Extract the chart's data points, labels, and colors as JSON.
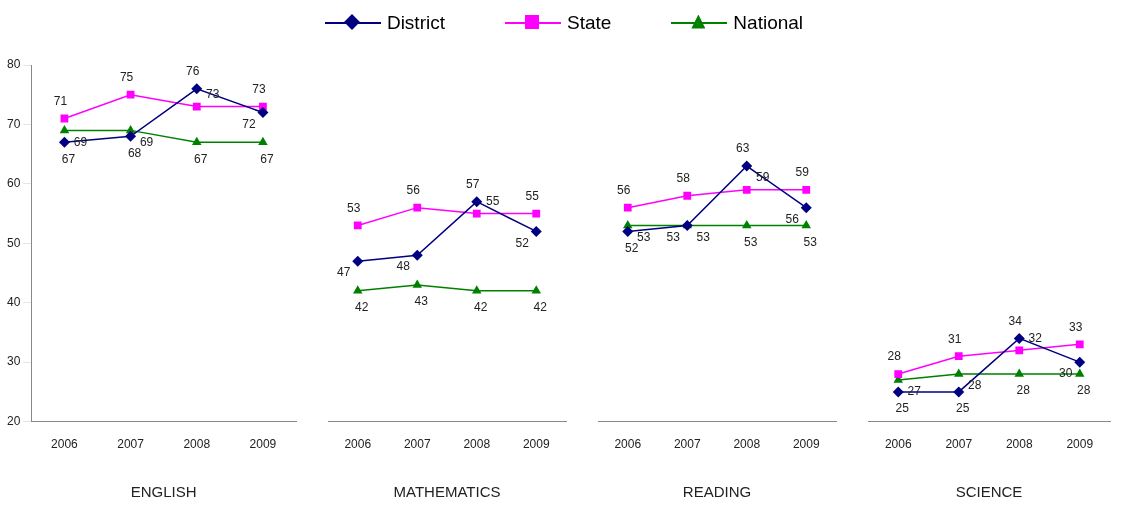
{
  "chart_data": [
    {
      "type": "line",
      "xlabel": "ENGLISH",
      "categories": [
        "2006",
        "2007",
        "2008",
        "2009"
      ],
      "ylim": [
        20,
        80
      ],
      "yticks": [
        20,
        30,
        40,
        50,
        60,
        70,
        80
      ],
      "grid": false,
      "legend": "top",
      "data_labels": true,
      "series": [
        {
          "name": "District",
          "color": "#000080",
          "marker": "diamond",
          "values": [
            67,
            68,
            76,
            72
          ]
        },
        {
          "name": "State",
          "color": "#ff00ff",
          "marker": "square",
          "values": [
            71,
            75,
            73,
            73
          ]
        },
        {
          "name": "National",
          "color": "#008000",
          "marker": "triangle",
          "values": [
            69,
            69,
            67,
            67
          ]
        }
      ]
    },
    {
      "type": "line",
      "xlabel": "MATHEMATICS",
      "categories": [
        "2006",
        "2007",
        "2008",
        "2009"
      ],
      "ylim": [
        20,
        80
      ],
      "yticks": [
        20,
        30,
        40,
        50,
        60,
        70,
        80
      ],
      "grid": false,
      "tick_labels": "x",
      "data_labels": true,
      "series": [
        {
          "color": "#000080",
          "marker": "diamond",
          "values": [
            47,
            48,
            57,
            52
          ]
        },
        {
          "color": "#ff00ff",
          "marker": "square",
          "values": [
            53,
            56,
            55,
            55
          ]
        },
        {
          "color": "#008000",
          "marker": "triangle",
          "values": [
            42,
            43,
            42,
            42
          ]
        }
      ]
    },
    {
      "type": "line",
      "xlabel": "READING",
      "categories": [
        "2006",
        "2007",
        "2008",
        "2009"
      ],
      "ylim": [
        20,
        80
      ],
      "yticks": [
        20,
        30,
        40,
        50,
        60,
        70,
        80
      ],
      "grid": false,
      "tick_labels": "x",
      "data_labels": true,
      "series": [
        {
          "color": "#000080",
          "marker": "diamond",
          "values": [
            52,
            53,
            63,
            56
          ]
        },
        {
          "color": "#ff00ff",
          "marker": "square",
          "values": [
            56,
            58,
            59,
            59
          ]
        },
        {
          "color": "#008000",
          "marker": "triangle",
          "values": [
            53,
            53,
            53,
            53
          ]
        }
      ]
    },
    {
      "type": "line",
      "xlabel": "SCIENCE",
      "categories": [
        "2006",
        "2007",
        "2008",
        "2009"
      ],
      "ylim": [
        20,
        80
      ],
      "yticks": [
        20,
        30,
        40,
        50,
        60,
        70,
        80
      ],
      "grid": false,
      "tick_labels": "x",
      "data_labels": true,
      "series": [
        {
          "color": "#000080",
          "marker": "diamond",
          "values": [
            25,
            25,
            34,
            30
          ]
        },
        {
          "color": "#ff00ff",
          "marker": "square",
          "values": [
            28,
            31,
            32,
            33
          ]
        },
        {
          "color": "#008000",
          "marker": "triangle",
          "values": [
            27,
            28,
            28,
            28
          ]
        }
      ]
    }
  ]
}
